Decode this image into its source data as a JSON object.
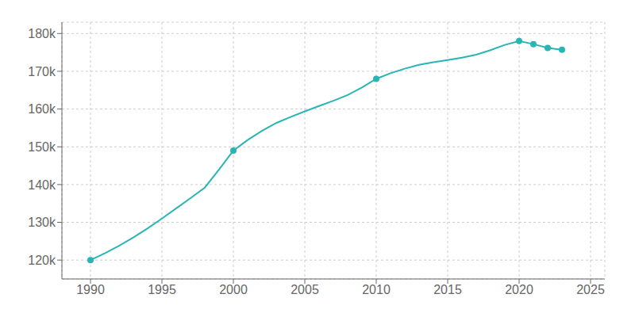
{
  "chart_data": {
    "type": "line",
    "x": [
      1990,
      1991,
      1992,
      1993,
      1994,
      1995,
      1996,
      1997,
      1998,
      1999,
      2000,
      2001,
      2002,
      2003,
      2004,
      2005,
      2006,
      2007,
      2008,
      2009,
      2010,
      2011,
      2012,
      2013,
      2014,
      2015,
      2016,
      2017,
      2018,
      2019,
      2020,
      2021,
      2022,
      2023
    ],
    "series": [
      {
        "type": "line",
        "color": "#2ab5b5",
        "values": [
          120000,
          121800,
          123800,
          126000,
          128400,
          131000,
          133700,
          136400,
          139200,
          144000,
          149000,
          151800,
          154200,
          156300,
          157900,
          159400,
          160800,
          162200,
          163700,
          165700,
          168000,
          169500,
          170700,
          171700,
          172400,
          173000,
          173600,
          174400,
          175600,
          177000,
          178000,
          177200,
          176200,
          175700
        ]
      },
      {
        "type": "scatter",
        "color": "#2ab5b5",
        "marker": "o",
        "values": [
          120000,
          null,
          null,
          null,
          null,
          null,
          null,
          null,
          null,
          null,
          149000,
          null,
          null,
          null,
          null,
          null,
          null,
          null,
          null,
          null,
          168000,
          null,
          null,
          null,
          null,
          null,
          null,
          null,
          null,
          null,
          178000,
          177200,
          176200,
          175700
        ]
      }
    ],
    "xlim": [
      1988,
      2026
    ],
    "ylim": [
      115000,
      183000
    ],
    "xticks": [
      1990,
      1995,
      2000,
      2005,
      2010,
      2015,
      2020,
      2025
    ],
    "yticks": [
      {
        "value": 120000,
        "label": "120k"
      },
      {
        "value": 130000,
        "label": "130k"
      },
      {
        "value": 140000,
        "label": "140k"
      },
      {
        "value": 150000,
        "label": "150k"
      },
      {
        "value": 160000,
        "label": "160k"
      },
      {
        "value": 170000,
        "label": "170k"
      },
      {
        "value": 180000,
        "label": "180k"
      }
    ],
    "grid": true
  }
}
